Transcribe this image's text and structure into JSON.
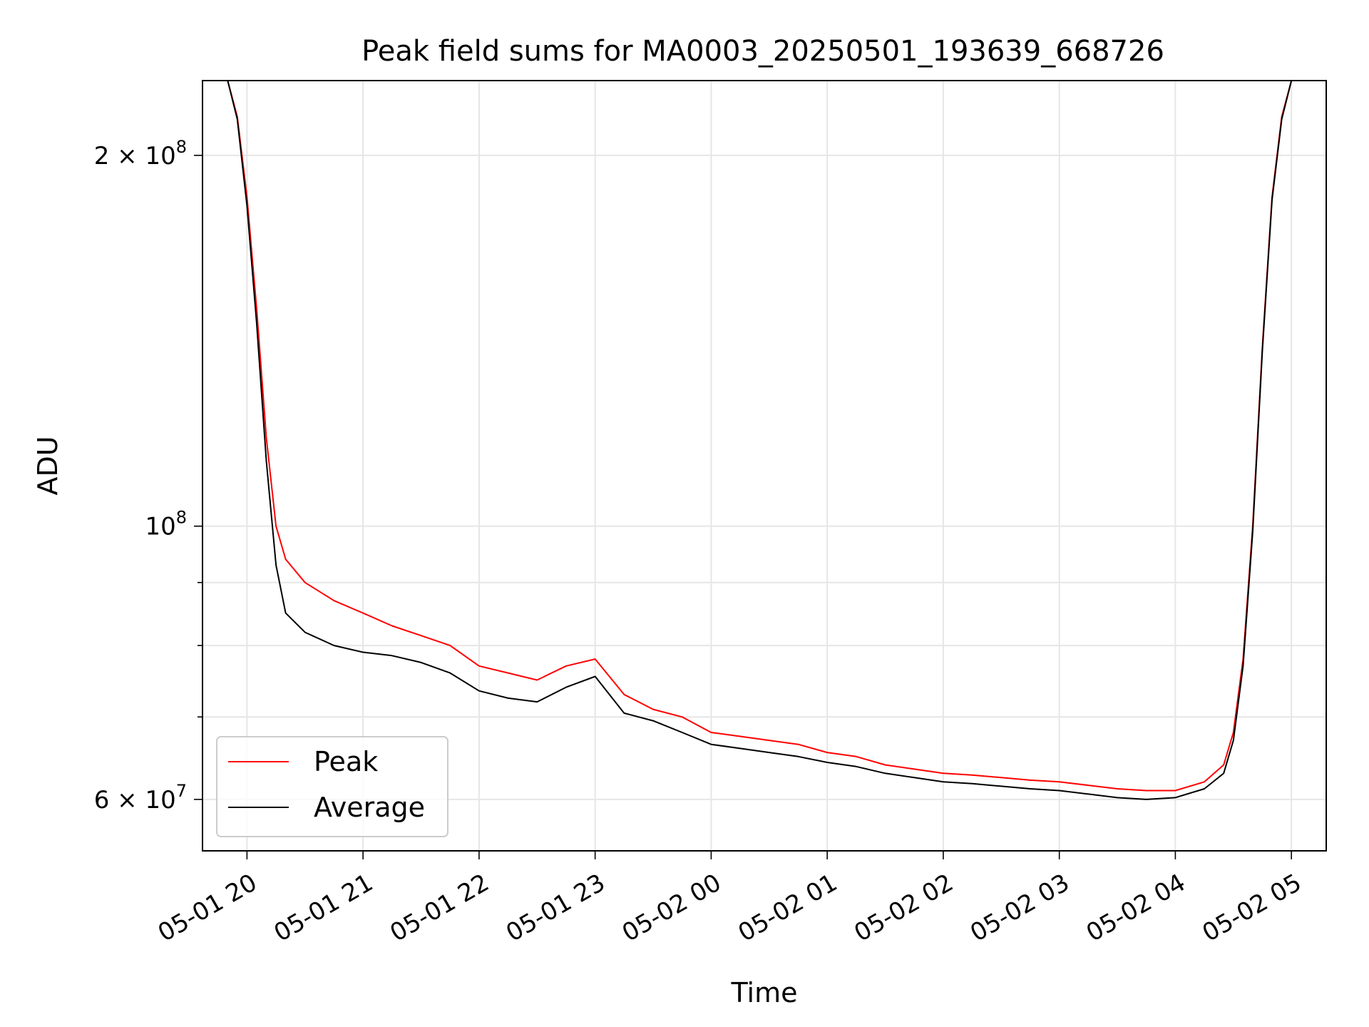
{
  "chart_data": {
    "type": "line",
    "title": "Peak field sums for MA0003_20250501_193639_668726",
    "xlabel": "Time",
    "ylabel": "ADU",
    "yscale": "log",
    "xlim": [
      "2025-05-01 19:37",
      "2025-05-02 05:18"
    ],
    "ylim": [
      54500000,
      230000000
    ],
    "grid": true,
    "legend_position": "lower-left",
    "x_ticks": [
      {
        "value": "2025-05-01 20:00",
        "label": "05-01 20"
      },
      {
        "value": "2025-05-01 21:00",
        "label": "05-01 21"
      },
      {
        "value": "2025-05-01 22:00",
        "label": "05-01 22"
      },
      {
        "value": "2025-05-01 23:00",
        "label": "05-01 23"
      },
      {
        "value": "2025-05-02 00:00",
        "label": "05-02 00"
      },
      {
        "value": "2025-05-02 01:00",
        "label": "05-02 01"
      },
      {
        "value": "2025-05-02 02:00",
        "label": "05-02 02"
      },
      {
        "value": "2025-05-02 03:00",
        "label": "05-02 03"
      },
      {
        "value": "2025-05-02 04:00",
        "label": "05-02 04"
      },
      {
        "value": "2025-05-02 05:00",
        "label": "05-02 05"
      }
    ],
    "y_ticks": [
      {
        "value": 200000000,
        "label_base": "2 × 10",
        "label_exp": "8"
      },
      {
        "value": 100000000,
        "label_base": "10",
        "label_exp": "8"
      },
      {
        "value": 60000000,
        "label_base": "6 × 10",
        "label_exp": "7"
      }
    ],
    "y_minor_ticks": [
      70000000,
      80000000,
      90000000
    ],
    "series": [
      {
        "name": "Peak",
        "color": "#ff0000",
        "x": [
          "2025-05-01 19:39",
          "2025-05-01 19:50",
          "2025-05-01 19:55",
          "2025-05-01 20:00",
          "2025-05-01 20:05",
          "2025-05-01 20:10",
          "2025-05-01 20:15",
          "2025-05-01 20:20",
          "2025-05-01 20:30",
          "2025-05-01 20:45",
          "2025-05-01 21:00",
          "2025-05-01 21:15",
          "2025-05-01 21:30",
          "2025-05-01 21:45",
          "2025-05-01 22:00",
          "2025-05-01 22:15",
          "2025-05-01 22:30",
          "2025-05-01 22:45",
          "2025-05-01 23:00",
          "2025-05-01 23:15",
          "2025-05-01 23:30",
          "2025-05-01 23:45",
          "2025-05-02 00:00",
          "2025-05-02 00:15",
          "2025-05-02 00:30",
          "2025-05-02 00:45",
          "2025-05-02 01:00",
          "2025-05-02 01:15",
          "2025-05-02 01:30",
          "2025-05-02 01:45",
          "2025-05-02 02:00",
          "2025-05-02 02:15",
          "2025-05-02 02:30",
          "2025-05-02 02:45",
          "2025-05-02 03:00",
          "2025-05-02 03:15",
          "2025-05-02 03:30",
          "2025-05-02 03:45",
          "2025-05-02 04:00",
          "2025-05-02 04:15",
          "2025-05-02 04:25",
          "2025-05-02 04:30",
          "2025-05-02 04:35",
          "2025-05-02 04:40",
          "2025-05-02 04:45",
          "2025-05-02 04:50",
          "2025-05-02 04:55",
          "2025-05-02 05:00",
          "2025-05-02 05:02"
        ],
        "values": [
          230000000,
          230000000,
          215000000,
          185000000,
          150000000,
          118000000,
          100000000,
          94000000,
          90000000,
          87000000,
          85000000,
          83000000,
          81500000,
          80000000,
          77000000,
          76000000,
          75000000,
          77000000,
          78000000,
          73000000,
          71000000,
          70000000,
          68000000,
          67500000,
          67000000,
          66500000,
          65500000,
          65000000,
          64000000,
          63500000,
          63000000,
          62800000,
          62500000,
          62200000,
          62000000,
          61600000,
          61200000,
          61000000,
          61000000,
          62000000,
          64000000,
          68000000,
          78000000,
          100000000,
          140000000,
          185000000,
          215000000,
          230000000,
          230000000
        ]
      },
      {
        "name": "Average",
        "color": "#000000",
        "x": [
          "2025-05-01 19:39",
          "2025-05-01 19:50",
          "2025-05-01 19:55",
          "2025-05-01 20:00",
          "2025-05-01 20:05",
          "2025-05-01 20:10",
          "2025-05-01 20:15",
          "2025-05-01 20:20",
          "2025-05-01 20:30",
          "2025-05-01 20:45",
          "2025-05-01 21:00",
          "2025-05-01 21:15",
          "2025-05-01 21:30",
          "2025-05-01 21:45",
          "2025-05-01 22:00",
          "2025-05-01 22:15",
          "2025-05-01 22:30",
          "2025-05-01 22:45",
          "2025-05-01 23:00",
          "2025-05-01 23:15",
          "2025-05-01 23:30",
          "2025-05-01 23:45",
          "2025-05-02 00:00",
          "2025-05-02 00:15",
          "2025-05-02 00:30",
          "2025-05-02 00:45",
          "2025-05-02 01:00",
          "2025-05-02 01:15",
          "2025-05-02 01:30",
          "2025-05-02 01:45",
          "2025-05-02 02:00",
          "2025-05-02 02:15",
          "2025-05-02 02:30",
          "2025-05-02 02:45",
          "2025-05-02 03:00",
          "2025-05-02 03:15",
          "2025-05-02 03:30",
          "2025-05-02 03:45",
          "2025-05-02 04:00",
          "2025-05-02 04:15",
          "2025-05-02 04:25",
          "2025-05-02 04:30",
          "2025-05-02 04:35",
          "2025-05-02 04:40",
          "2025-05-02 04:45",
          "2025-05-02 04:50",
          "2025-05-02 04:55",
          "2025-05-02 05:00",
          "2025-05-02 05:02"
        ],
        "values": [
          230000000,
          230000000,
          214000000,
          182000000,
          146000000,
          113000000,
          93000000,
          85000000,
          82000000,
          80000000,
          79000000,
          78500000,
          77500000,
          76000000,
          73500000,
          72500000,
          72000000,
          74000000,
          75500000,
          70500000,
          69500000,
          68000000,
          66500000,
          66000000,
          65500000,
          65000000,
          64300000,
          63800000,
          63000000,
          62500000,
          62000000,
          61800000,
          61500000,
          61200000,
          61000000,
          60600000,
          60200000,
          60000000,
          60200000,
          61200000,
          63000000,
          67000000,
          77000000,
          99000000,
          139000000,
          184000000,
          214000000,
          230000000,
          230000000
        ]
      }
    ]
  }
}
